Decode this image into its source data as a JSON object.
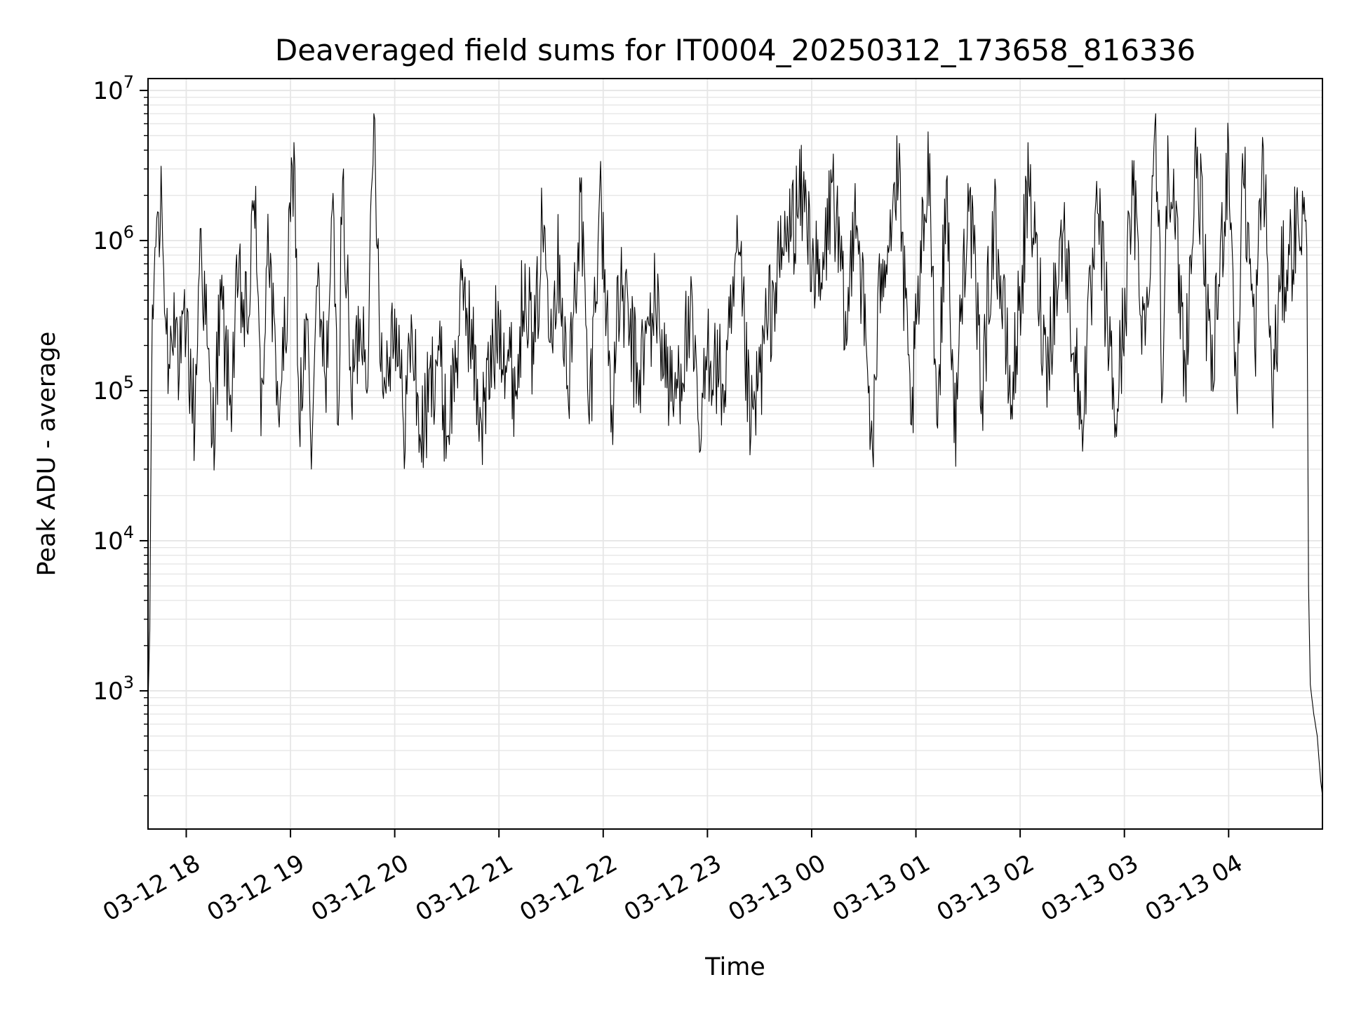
{
  "chart_data": {
    "type": "line",
    "title": "Deaveraged field sums for IT0004_20250312_173658_816336",
    "xlabel": "Time",
    "ylabel": "Peak ADU - average",
    "yscale": "log",
    "ylim": [
      120,
      12000000
    ],
    "xlim": [
      "2025-03-12 17:38",
      "2025-03-13 04:54"
    ],
    "grid": "on",
    "line_color": "#000000",
    "grid_color": "#e6e6e6",
    "x_ticks": [
      {
        "value": "2025-03-12 18:00",
        "label": "03-12 18"
      },
      {
        "value": "2025-03-12 19:00",
        "label": "03-12 19"
      },
      {
        "value": "2025-03-12 20:00",
        "label": "03-12 20"
      },
      {
        "value": "2025-03-12 21:00",
        "label": "03-12 21"
      },
      {
        "value": "2025-03-12 22:00",
        "label": "03-12 22"
      },
      {
        "value": "2025-03-12 23:00",
        "label": "03-12 23"
      },
      {
        "value": "2025-03-13 00:00",
        "label": "03-13 00"
      },
      {
        "value": "2025-03-13 01:00",
        "label": "03-13 01"
      },
      {
        "value": "2025-03-13 02:00",
        "label": "03-13 02"
      },
      {
        "value": "2025-03-13 03:00",
        "label": "03-13 03"
      },
      {
        "value": "2025-03-13 04:00",
        "label": "03-13 04"
      }
    ],
    "y_ticks": [
      {
        "value": 1000,
        "base": "10",
        "exp": "3"
      },
      {
        "value": 10000,
        "base": "10",
        "exp": "4"
      },
      {
        "value": 100000,
        "base": "10",
        "exp": "5"
      },
      {
        "value": 1000000,
        "base": "10",
        "exp": "6"
      },
      {
        "value": 10000000,
        "base": "10",
        "exp": "7"
      }
    ],
    "series": [
      {
        "points": [
          [
            "2025-03-12 17:38",
            800
          ],
          [
            "2025-03-12 17:39",
            2500
          ],
          [
            "2025-03-12 17:40",
            100000
          ],
          [
            "2025-03-12 17:42",
            900000
          ],
          [
            "2025-03-12 17:43",
            1400000
          ],
          [
            "2025-03-12 17:45",
            1100000
          ],
          [
            "2025-03-12 17:46",
            1700000
          ],
          [
            "2025-03-12 17:48",
            300000
          ],
          [
            "2025-03-12 17:50",
            150000
          ],
          [
            "2025-03-12 17:53",
            450000
          ],
          [
            "2025-03-12 17:56",
            130000
          ],
          [
            "2025-03-12 18:00",
            250000
          ],
          [
            "2025-03-12 18:05",
            60000
          ],
          [
            "2025-03-12 18:08",
            1200000
          ],
          [
            "2025-03-12 18:12",
            200000
          ],
          [
            "2025-03-12 18:15",
            45000
          ],
          [
            "2025-03-12 18:20",
            400000
          ],
          [
            "2025-03-12 18:25",
            80000
          ],
          [
            "2025-03-12 18:30",
            500000
          ],
          [
            "2025-03-12 18:35",
            250000
          ],
          [
            "2025-03-12 18:40",
            2300000
          ],
          [
            "2025-03-12 18:43",
            50000
          ],
          [
            "2025-03-12 18:47",
            1500000
          ],
          [
            "2025-03-12 18:52",
            80000
          ],
          [
            "2025-03-12 18:57",
            200000
          ],
          [
            "2025-03-12 19:02",
            4500000
          ],
          [
            "2025-03-12 19:05",
            60000
          ],
          [
            "2025-03-12 19:10",
            300000
          ],
          [
            "2025-03-12 19:12",
            30000
          ],
          [
            "2025-03-12 19:15",
            500000
          ],
          [
            "2025-03-12 19:20",
            120000
          ],
          [
            "2025-03-12 19:25",
            1400000
          ],
          [
            "2025-03-12 19:27",
            60000
          ],
          [
            "2025-03-12 19:30",
            2500000
          ],
          [
            "2025-03-12 19:35",
            90000
          ],
          [
            "2025-03-12 19:40",
            300000
          ],
          [
            "2025-03-12 19:45",
            200000
          ],
          [
            "2025-03-12 19:48",
            7000000
          ],
          [
            "2025-03-12 19:53",
            100000
          ],
          [
            "2025-03-12 20:00",
            350000
          ],
          [
            "2025-03-12 20:05",
            60000
          ],
          [
            "2025-03-12 20:10",
            250000
          ],
          [
            "2025-03-12 20:15",
            45000
          ],
          [
            "2025-03-12 20:25",
            200000
          ],
          [
            "2025-03-12 20:30",
            50000
          ],
          [
            "2025-03-12 20:40",
            500000
          ],
          [
            "2025-03-12 20:50",
            60000
          ],
          [
            "2025-03-12 21:00",
            300000
          ],
          [
            "2025-03-12 21:10",
            100000
          ],
          [
            "2025-03-12 21:15",
            700000
          ],
          [
            "2025-03-12 21:20",
            150000
          ],
          [
            "2025-03-12 21:25",
            1300000
          ],
          [
            "2025-03-12 21:30",
            350000
          ],
          [
            "2025-03-12 21:35",
            800000
          ],
          [
            "2025-03-12 21:40",
            80000
          ],
          [
            "2025-03-12 21:47",
            2100000
          ],
          [
            "2025-03-12 21:52",
            60000
          ],
          [
            "2025-03-12 21:58",
            2200000
          ],
          [
            "2025-03-12 22:05",
            80000
          ],
          [
            "2025-03-12 22:10",
            500000
          ],
          [
            "2025-03-12 22:20",
            120000
          ],
          [
            "2025-03-12 22:30",
            400000
          ],
          [
            "2025-03-12 22:40",
            80000
          ],
          [
            "2025-03-12 22:50",
            300000
          ],
          [
            "2025-03-12 22:56",
            40000
          ],
          [
            "2025-03-12 23:00",
            200000
          ],
          [
            "2025-03-12 23:10",
            100000
          ],
          [
            "2025-03-12 23:18",
            800000
          ],
          [
            "2025-03-12 23:25",
            50000
          ],
          [
            "2025-03-12 23:35",
            300000
          ],
          [
            "2025-03-12 23:45",
            1000000
          ],
          [
            "2025-03-12 23:55",
            2000000
          ],
          [
            "2025-03-13 00:05",
            400000
          ],
          [
            "2025-03-13 00:12",
            2500000
          ],
          [
            "2025-03-13 00:20",
            200000
          ],
          [
            "2025-03-13 00:25",
            2400000
          ],
          [
            "2025-03-13 00:35",
            40000
          ],
          [
            "2025-03-13 00:40",
            700000
          ],
          [
            "2025-03-13 00:50",
            2600000
          ],
          [
            "2025-03-13 00:57",
            60000
          ],
          [
            "2025-03-13 01:05",
            1500000
          ],
          [
            "2025-03-13 01:08",
            3800000
          ],
          [
            "2025-03-13 01:12",
            60000
          ],
          [
            "2025-03-13 01:18",
            2700000
          ],
          [
            "2025-03-13 01:22",
            45000
          ],
          [
            "2025-03-13 01:30",
            2400000
          ],
          [
            "2025-03-13 01:38",
            100000
          ],
          [
            "2025-03-13 01:45",
            1500000
          ],
          [
            "2025-03-13 01:55",
            80000
          ],
          [
            "2025-03-13 02:05",
            2300000
          ],
          [
            "2025-03-13 02:15",
            150000
          ],
          [
            "2025-03-13 02:25",
            1200000
          ],
          [
            "2025-03-13 02:35",
            60000
          ],
          [
            "2025-03-13 02:45",
            1500000
          ],
          [
            "2025-03-13 02:55",
            60000
          ],
          [
            "2025-03-13 03:05",
            2000000
          ],
          [
            "2025-03-13 03:12",
            200000
          ],
          [
            "2025-03-13 03:18",
            7000000
          ],
          [
            "2025-03-13 03:22",
            100000
          ],
          [
            "2025-03-13 03:25",
            5000000
          ],
          [
            "2025-03-13 03:35",
            150000
          ],
          [
            "2025-03-13 03:42",
            4200000
          ],
          [
            "2025-03-13 03:50",
            100000
          ],
          [
            "2025-03-13 04:00",
            4300000
          ],
          [
            "2025-03-13 04:05",
            70000
          ],
          [
            "2025-03-13 04:08",
            3800000
          ],
          [
            "2025-03-13 04:15",
            200000
          ],
          [
            "2025-03-13 04:20",
            4100000
          ],
          [
            "2025-03-13 04:25",
            90000
          ],
          [
            "2025-03-13 04:30",
            500000
          ],
          [
            "2025-03-13 04:35",
            800000
          ],
          [
            "2025-03-13 04:40",
            1300000
          ],
          [
            "2025-03-13 04:43",
            1500000
          ],
          [
            "2025-03-13 04:45",
            900000
          ],
          [
            "2025-03-13 04:46",
            5000
          ],
          [
            "2025-03-13 04:47",
            1100
          ],
          [
            "2025-03-13 04:49",
            700
          ],
          [
            "2025-03-13 04:51",
            500
          ],
          [
            "2025-03-13 04:53",
            250
          ],
          [
            "2025-03-13 04:54",
            200
          ]
        ]
      }
    ]
  }
}
